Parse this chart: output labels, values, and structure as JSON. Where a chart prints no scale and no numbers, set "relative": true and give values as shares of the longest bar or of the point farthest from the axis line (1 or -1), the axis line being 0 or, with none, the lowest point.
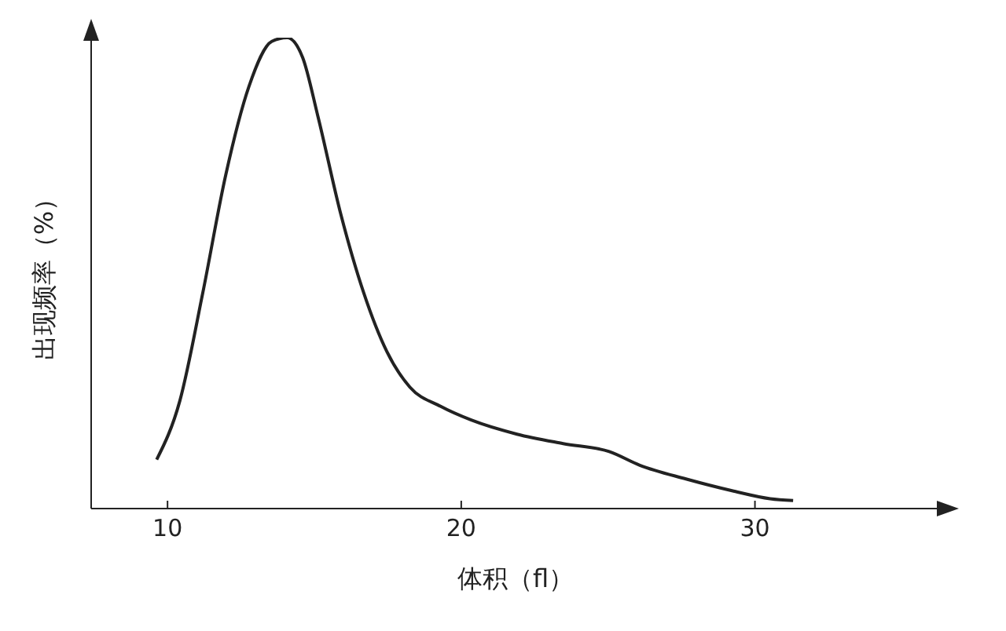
{
  "chart_data": {
    "type": "line",
    "relative": true,
    "xlabel": "体积（fl）",
    "ylabel": "出现频率（%）",
    "xlim": [
      7.4,
      36.3
    ],
    "xticks": [
      10,
      20,
      30
    ],
    "marker": "none",
    "line_style": "solid",
    "series": [
      {
        "color": "#222222",
        "x": [
          9.63,
          10.42,
          11.2,
          11.98,
          12.77,
          13.55,
          14.07,
          14.6,
          15.12,
          15.9,
          16.68,
          17.47,
          18.25,
          19.3,
          20.34,
          21.9,
          23.47,
          25.04,
          26.08,
          27.65,
          29.22,
          30.52,
          31.3
        ],
        "values": [
          0.104,
          0.229,
          0.458,
          0.708,
          0.896,
          0.992,
          1.0,
          0.958,
          0.833,
          0.625,
          0.458,
          0.333,
          0.258,
          0.217,
          0.188,
          0.158,
          0.138,
          0.121,
          0.092,
          0.063,
          0.038,
          0.021,
          0.017
        ]
      }
    ]
  }
}
